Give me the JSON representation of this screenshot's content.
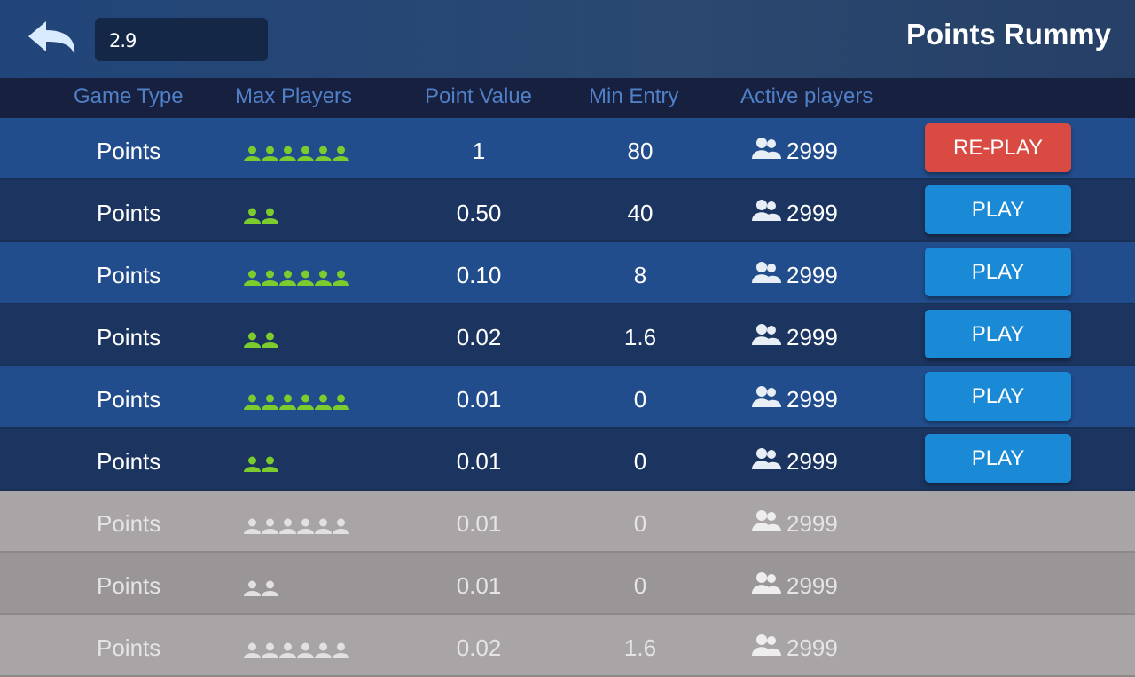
{
  "header": {
    "balance": "2.9",
    "title": "Points Rummy",
    "back_icon": "back-arrow-icon"
  },
  "columns": [
    "Game Type",
    "Max Players",
    "Point Value",
    "Min Entry",
    "Active players"
  ],
  "colors": {
    "play": "#1a8ad6",
    "replay": "#d94b42",
    "player_icon_active": "#7ccc2e",
    "player_icon_disabled": "#e2e0e1"
  },
  "rows": [
    {
      "game_type": "Points",
      "max_players": 6,
      "point_value": "1",
      "min_entry": "80",
      "active": "2999",
      "button": "RE-PLAY",
      "button_type": "replay",
      "disabled": false
    },
    {
      "game_type": "Points",
      "max_players": 2,
      "point_value": "0.50",
      "min_entry": "40",
      "active": "2999",
      "button": "PLAY",
      "button_type": "play",
      "disabled": false
    },
    {
      "game_type": "Points",
      "max_players": 6,
      "point_value": "0.10",
      "min_entry": "8",
      "active": "2999",
      "button": "PLAY",
      "button_type": "play",
      "disabled": false
    },
    {
      "game_type": "Points",
      "max_players": 2,
      "point_value": "0.02",
      "min_entry": "1.6",
      "active": "2999",
      "button": "PLAY",
      "button_type": "play",
      "disabled": false
    },
    {
      "game_type": "Points",
      "max_players": 6,
      "point_value": "0.01",
      "min_entry": "0",
      "active": "2999",
      "button": "PLAY",
      "button_type": "play",
      "disabled": false
    },
    {
      "game_type": "Points",
      "max_players": 2,
      "point_value": "0.01",
      "min_entry": "0",
      "active": "2999",
      "button": "PLAY",
      "button_type": "play",
      "disabled": false
    },
    {
      "game_type": "Points",
      "max_players": 6,
      "point_value": "0.01",
      "min_entry": "0",
      "active": "2999",
      "button": "",
      "button_type": "",
      "disabled": true
    },
    {
      "game_type": "Points",
      "max_players": 2,
      "point_value": "0.01",
      "min_entry": "0",
      "active": "2999",
      "button": "",
      "button_type": "",
      "disabled": true
    },
    {
      "game_type": "Points",
      "max_players": 6,
      "point_value": "0.02",
      "min_entry": "1.6",
      "active": "2999",
      "button": "",
      "button_type": "",
      "disabled": true
    }
  ]
}
